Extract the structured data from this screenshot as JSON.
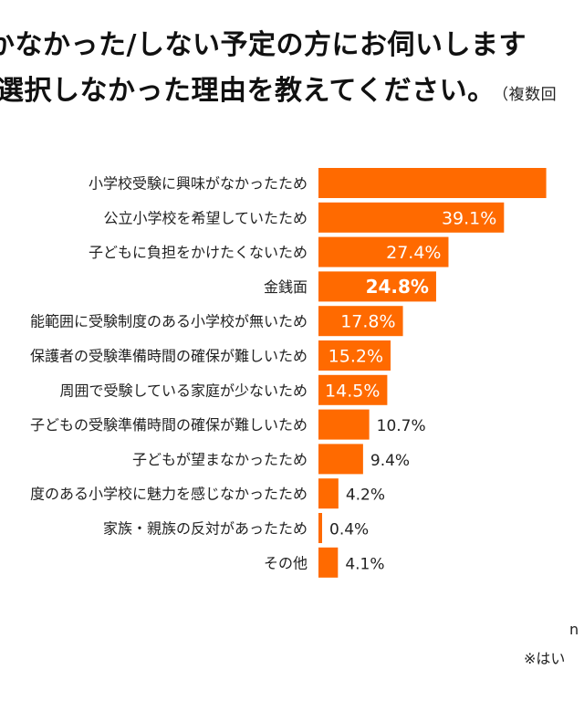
{
  "title": {
    "line1": "かなかった/しない予定の方にお伺いします",
    "line2": "選択しなかった理由を教えてください。",
    "note": "（複数回"
  },
  "chart_data": {
    "type": "bar",
    "orientation": "horizontal",
    "unit": "%",
    "categories": [
      "小学校受験に興味がなかったため",
      "公立小学校を希望していたため",
      "子どもに負担をかけたくないため",
      "金銭面",
      "通学可能範囲に受験制度のある小学校が無いため",
      "保護者の受験準備時間の確保が難しいため",
      "周囲で受験している家庭が少ないため",
      "子どもの受験準備時間の確保が難しいため",
      "子どもが望まなかったため",
      "受験制度のある小学校に魅力を感じなかったため",
      "家族・親族の反対があったため",
      "その他"
    ],
    "labels_visible": [
      "小学校受験に興味がなかったため",
      "公立小学校を希望していたため",
      "子どもに負担をかけたくないため",
      "金銭面",
      "能範囲に受験制度のある小学校が無いため",
      "保護者の受験準備時間の確保が難しいため",
      "周囲で受験している家庭が少ないため",
      "子どもの受験準備時間の確保が難しいため",
      "子どもが望まなかったため",
      "度のある小学校に魅力を感じなかったため",
      "家族・親族の反対があったため",
      "その他"
    ],
    "values": [
      48.0,
      39.1,
      27.4,
      24.8,
      17.8,
      15.2,
      14.5,
      10.7,
      9.4,
      4.2,
      0.4,
      4.1
    ],
    "value_labels": [
      "",
      "39.1%",
      "27.4%",
      "24.8%",
      "17.8%",
      "15.2%",
      "14.5%",
      "10.7%",
      "9.4%",
      "4.2%",
      "0.4%",
      "4.1%"
    ],
    "highlight_index": 3,
    "bar_color": "#ff6a00"
  },
  "footnotes": {
    "n": "n",
    "note": "※はい"
  }
}
